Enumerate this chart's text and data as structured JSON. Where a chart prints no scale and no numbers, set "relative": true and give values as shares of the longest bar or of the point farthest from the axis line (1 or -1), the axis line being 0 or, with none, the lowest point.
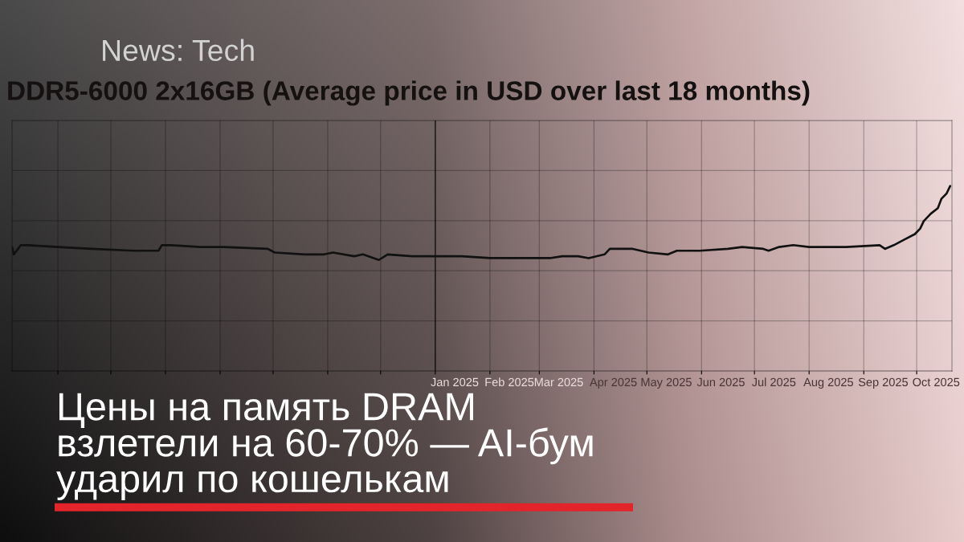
{
  "chart_data": {
    "type": "line",
    "title": "DDR5-6000 2x16GB (Average price in USD over last 18 months)",
    "annotations": [
      "News: Tech",
      "Цены на память DRAM взлетели на 60-70% — AI-бум ударил по кошелькам"
    ],
    "relative": true,
    "x": [
      "2024-05-06",
      "2024-05-07",
      "2024-05-11",
      "2024-05-15",
      "2024-06-01",
      "2024-06-20",
      "2024-07-14",
      "2024-07-28",
      "2024-07-30",
      "2024-08-04",
      "2024-08-21",
      "2024-09-03",
      "2024-09-28",
      "2024-10-02",
      "2024-10-19",
      "2024-10-30",
      "2024-11-04",
      "2024-11-16",
      "2024-11-21",
      "2024-11-30",
      "2024-12-05",
      "2024-12-19",
      "2025-01-01",
      "2025-01-16",
      "2025-02-01",
      "2025-02-21",
      "2025-03-07",
      "2025-03-14",
      "2025-03-23",
      "2025-03-29",
      "2025-04-07",
      "2025-04-10",
      "2025-04-23",
      "2025-05-02",
      "2025-05-13",
      "2025-05-18",
      "2025-05-31",
      "2025-06-16",
      "2025-06-24",
      "2025-07-06",
      "2025-07-09",
      "2025-07-15",
      "2025-07-23",
      "2025-08-01",
      "2025-08-22",
      "2025-09-10",
      "2025-09-13",
      "2025-09-18",
      "2025-09-24",
      "2025-09-30",
      "2025-10-03",
      "2025-10-05",
      "2025-10-09",
      "2025-10-13",
      "2025-10-15",
      "2025-10-18",
      "2025-10-20"
    ],
    "values": [
      0.67,
      0.63,
      0.68,
      0.68,
      0.67,
      0.66,
      0.65,
      0.65,
      0.68,
      0.68,
      0.67,
      0.67,
      0.66,
      0.64,
      0.63,
      0.63,
      0.64,
      0.62,
      0.63,
      0.6,
      0.63,
      0.62,
      0.62,
      0.62,
      0.61,
      0.61,
      0.61,
      0.62,
      0.62,
      0.61,
      0.63,
      0.66,
      0.66,
      0.64,
      0.63,
      0.65,
      0.65,
      0.66,
      0.67,
      0.66,
      0.65,
      0.67,
      0.68,
      0.67,
      0.67,
      0.68,
      0.66,
      0.68,
      0.71,
      0.74,
      0.77,
      0.81,
      0.85,
      0.88,
      0.93,
      0.96,
      1.0
    ],
    "color": "#111111",
    "xlim": [
      "2024-05-06",
      "2025-10-21"
    ],
    "xticks": [
      {
        "value": "2024-06-01",
        "label": null
      },
      {
        "value": "2024-07-01",
        "label": null
      },
      {
        "value": "2024-08-01",
        "label": null
      },
      {
        "value": "2024-09-01",
        "label": null
      },
      {
        "value": "2024-10-01",
        "label": null
      },
      {
        "value": "2024-11-01",
        "label": null
      },
      {
        "value": "2024-12-01",
        "label": null
      },
      {
        "value": "2025-01-01",
        "label": null
      },
      {
        "value": "2025-02-01",
        "label": null
      },
      {
        "value": "2025-03-01",
        "label": null
      },
      {
        "value": "2025-04-01",
        "label": null
      },
      {
        "value": "2025-05-01",
        "label": null
      },
      {
        "value": "2025-06-01",
        "label": null
      },
      {
        "value": "2025-07-01",
        "label": null
      },
      {
        "value": "2025-08-01",
        "label": null
      },
      {
        "value": "2025-09-01",
        "label": null
      },
      {
        "value": "2025-10-01",
        "label": null
      },
      {
        "value": "2025-01-12",
        "label": "Jan 2025"
      },
      {
        "value": "2025-02-12",
        "label": "Feb 2025"
      },
      {
        "value": "2025-03-12",
        "label": "Mar 2025"
      },
      {
        "value": "2025-04-12",
        "label": "Apr 2025"
      },
      {
        "value": "2025-05-12",
        "label": "May 2025"
      },
      {
        "value": "2025-06-12",
        "label": "Jun 2025"
      },
      {
        "value": "2025-07-12",
        "label": "Jul 2025"
      },
      {
        "value": "2025-08-12",
        "label": "Aug 2025"
      },
      {
        "value": "2025-09-12",
        "label": "Sep 2025"
      },
      {
        "value": "2025-10-12",
        "label": "Oct 2025"
      }
    ],
    "ref_lines": [
      {
        "axis": "x",
        "value": "2025-01-01",
        "color": "#000000"
      }
    ],
    "grid": true,
    "tick_labels": "x"
  }
}
